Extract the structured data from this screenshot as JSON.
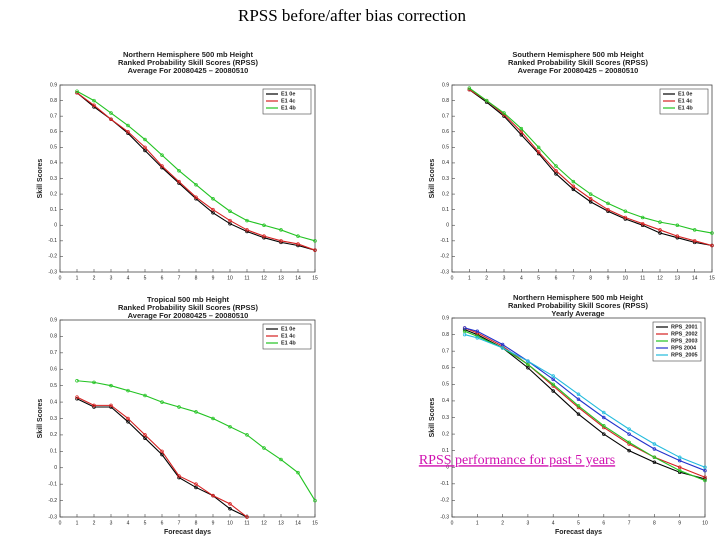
{
  "title": "RPSS  before/after bias correction",
  "link": "RPSS performance for past 5 years",
  "chart_data": [
    {
      "type": "line",
      "title_lines": [
        "Northern Hemisphere 500 mb Height",
        "Ranked Probability Skill Scores (RPSS)",
        "Average For 20080425 – 20080510"
      ],
      "ylabel": "Skill Scores",
      "x": [
        1,
        2,
        3,
        4,
        5,
        6,
        7,
        8,
        9,
        10,
        11,
        12,
        13,
        14,
        15
      ],
      "series": [
        {
          "name": "E1 0e",
          "color": "#000000",
          "values": [
            0.85,
            0.76,
            0.68,
            0.59,
            0.48,
            0.37,
            0.27,
            0.17,
            0.08,
            0.01,
            -0.04,
            -0.08,
            -0.11,
            -0.13,
            -0.16
          ]
        },
        {
          "name": "E1 4c",
          "color": "#d62020",
          "values": [
            0.85,
            0.77,
            0.68,
            0.6,
            0.5,
            0.38,
            0.28,
            0.18,
            0.1,
            0.03,
            -0.03,
            -0.07,
            -0.1,
            -0.12,
            -0.16
          ]
        },
        {
          "name": "E1 4b",
          "color": "#22c322",
          "values": [
            0.86,
            0.8,
            0.72,
            0.64,
            0.55,
            0.45,
            0.35,
            0.26,
            0.17,
            0.09,
            0.03,
            0,
            -0.03,
            -0.07,
            -0.1
          ]
        }
      ],
      "xlim": [
        0,
        15
      ],
      "xticks": [
        0,
        1,
        2,
        3,
        4,
        5,
        6,
        7,
        8,
        9,
        10,
        11,
        12,
        13,
        14,
        15
      ],
      "ylim": [
        -0.3,
        0.9
      ],
      "yticks": [
        -0.3,
        -0.2,
        -0.1,
        0,
        0.1,
        0.2,
        0.3,
        0.4,
        0.5,
        0.6,
        0.7,
        0.8,
        0.9
      ]
    },
    {
      "type": "line",
      "title_lines": [
        "Southern Hemisphere 500 mb Height",
        "Ranked Probability Skill Scores (RPSS)",
        "Average For 20080425 – 20080510"
      ],
      "ylabel": "Skill Scores",
      "x": [
        1,
        2,
        3,
        4,
        5,
        6,
        7,
        8,
        9,
        10,
        11,
        12,
        13,
        14,
        15
      ],
      "series": [
        {
          "name": "E1 0e",
          "color": "#000000",
          "values": [
            0.87,
            0.79,
            0.7,
            0.58,
            0.46,
            0.33,
            0.23,
            0.15,
            0.09,
            0.04,
            0,
            -0.05,
            -0.08,
            -0.11,
            -0.13
          ]
        },
        {
          "name": "E1 4c",
          "color": "#d62020",
          "values": [
            0.87,
            0.8,
            0.71,
            0.6,
            0.47,
            0.35,
            0.25,
            0.17,
            0.1,
            0.05,
            0.01,
            -0.03,
            -0.07,
            -0.1,
            -0.13
          ]
        },
        {
          "name": "E1 4b",
          "color": "#22c322",
          "values": [
            0.88,
            0.8,
            0.72,
            0.62,
            0.5,
            0.38,
            0.28,
            0.2,
            0.14,
            0.09,
            0.05,
            0.02,
            0,
            -0.03,
            -0.05
          ]
        }
      ],
      "xlim": [
        0,
        15
      ],
      "xticks": [
        0,
        1,
        2,
        3,
        4,
        5,
        6,
        7,
        8,
        9,
        10,
        11,
        12,
        13,
        14,
        15
      ],
      "ylim": [
        -0.3,
        0.9
      ],
      "yticks": [
        -0.3,
        -0.2,
        -0.1,
        0,
        0.1,
        0.2,
        0.3,
        0.4,
        0.5,
        0.6,
        0.7,
        0.8,
        0.9
      ]
    },
    {
      "type": "line",
      "title_lines": [
        "Tropical 500 mb Height",
        "Ranked Probability Skill Scores (RPSS)",
        "Average For 20080425 – 20080510"
      ],
      "ylabel": "Skill Scores",
      "xlabel": "Forecast days",
      "x": [
        1,
        2,
        3,
        4,
        5,
        6,
        7,
        8,
        9,
        10,
        11,
        12,
        13,
        14,
        15
      ],
      "series": [
        {
          "name": "E1 0e",
          "color": "#000000",
          "values": [
            0.42,
            0.37,
            0.37,
            0.28,
            0.18,
            0.08,
            -0.06,
            -0.12,
            -0.17,
            -0.25,
            -0.3,
            null,
            null,
            null,
            null
          ]
        },
        {
          "name": "E1 4c",
          "color": "#d62020",
          "values": [
            0.43,
            0.38,
            0.38,
            0.3,
            0.2,
            0.1,
            -0.05,
            -0.1,
            -0.17,
            -0.22,
            -0.3,
            null,
            null,
            null,
            null
          ]
        },
        {
          "name": "E1 4b",
          "color": "#22c322",
          "values": [
            0.53,
            0.52,
            0.5,
            0.47,
            0.44,
            0.4,
            0.37,
            0.34,
            0.3,
            0.25,
            0.2,
            0.12,
            0.05,
            -0.03,
            -0.2
          ]
        }
      ],
      "xlim": [
        0,
        15
      ],
      "xticks": [
        0,
        1,
        2,
        3,
        4,
        5,
        6,
        7,
        8,
        9,
        10,
        11,
        12,
        13,
        14,
        15
      ],
      "ylim": [
        -0.3,
        0.9
      ],
      "yticks": [
        -0.3,
        -0.2,
        -0.1,
        0,
        0.1,
        0.2,
        0.3,
        0.4,
        0.5,
        0.6,
        0.7,
        0.8,
        0.9
      ]
    },
    {
      "type": "line",
      "title_lines": [
        "Northern Hemisphere 500 mb Height",
        "Ranked Probability Skill Scores (RPSS)",
        "Yearly Average"
      ],
      "ylabel": "Skill Scores",
      "xlabel": "Forecast days",
      "x": [
        0.5,
        1,
        2,
        3,
        4,
        5,
        6,
        7,
        8,
        9,
        10
      ],
      "series": [
        {
          "name": "RPS_2001",
          "color": "#000000",
          "values": [
            0.83,
            0.8,
            0.72,
            0.6,
            0.46,
            0.32,
            0.2,
            0.1,
            0.03,
            -0.03,
            -0.07
          ]
        },
        {
          "name": "RPS_2002",
          "color": "#d62020",
          "values": [
            0.84,
            0.81,
            0.73,
            0.62,
            0.49,
            0.36,
            0.24,
            0.14,
            0.06,
            0,
            -0.06
          ]
        },
        {
          "name": "RPS_2003",
          "color": "#22c322",
          "values": [
            0.82,
            0.79,
            0.72,
            0.62,
            0.5,
            0.37,
            0.25,
            0.15,
            0.06,
            -0.02,
            -0.08
          ]
        },
        {
          "name": "RPS 2004",
          "color": "#2233cc",
          "values": [
            0.84,
            0.82,
            0.74,
            0.64,
            0.53,
            0.41,
            0.3,
            0.2,
            0.11,
            0.04,
            -0.02
          ]
        },
        {
          "name": "RPS_2005",
          "color": "#22bbdd",
          "values": [
            0.8,
            0.78,
            0.72,
            0.64,
            0.55,
            0.44,
            0.33,
            0.23,
            0.14,
            0.06,
            0
          ]
        }
      ],
      "xlim": [
        0,
        10
      ],
      "xticks": [
        0,
        1,
        2,
        3,
        4,
        5,
        6,
        7,
        8,
        9,
        10
      ],
      "ylim": [
        -0.3,
        0.9
      ],
      "yticks": [
        -0.3,
        -0.2,
        -0.1,
        0,
        0.1,
        0.2,
        0.3,
        0.4,
        0.5,
        0.6,
        0.7,
        0.8,
        0.9
      ]
    }
  ]
}
